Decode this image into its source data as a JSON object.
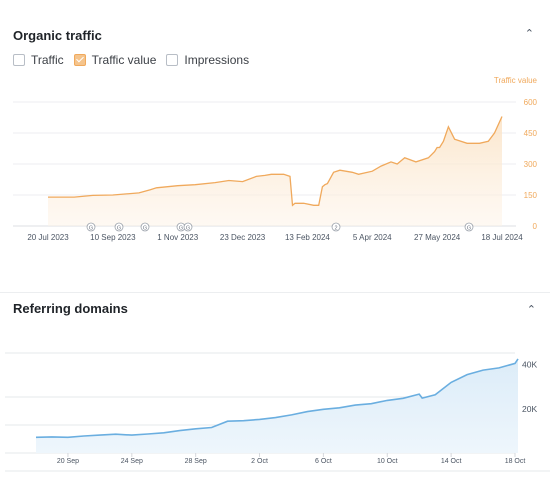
{
  "traffic_panel": {
    "title": "Organic traffic",
    "collapse_icon": "chevron-up-icon",
    "legend": [
      {
        "label": "Traffic",
        "checked": false
      },
      {
        "label": "Traffic value",
        "checked": true
      },
      {
        "label": "Impressions",
        "checked": false
      }
    ],
    "accent": "#f0a95c"
  },
  "domains_panel": {
    "title": "Referring domains",
    "collapse_icon": "chevron-up-icon",
    "accent": "#6aaee0"
  },
  "chart_data": [
    {
      "type": "area",
      "ylabel": "Traffic value",
      "ylim": [
        0,
        600
      ],
      "y_ticks": [
        0,
        150,
        300,
        450,
        600
      ],
      "x_tick_labels": [
        "20 Jul 2023",
        "10 Sep 2023",
        "1 Nov 2023",
        "23 Dec 2023",
        "13 Feb 2024",
        "5 Apr 2024",
        "27 May 2024",
        "18 Jul 2024"
      ],
      "annotations": [
        "G",
        "G",
        "G",
        "G",
        "G",
        "2",
        "G"
      ],
      "series": [
        {
          "x": [
            "20 Jul 2023",
            "10 Aug 2023",
            "25 Aug 2023",
            "10 Sep 2023",
            "1 Oct 2023",
            "10 Oct 2023",
            "15 Oct 2023",
            "1 Nov 2023",
            "15 Nov 2023",
            "1 Dec 2023",
            "12 Dec 2023",
            "23 Dec 2023",
            "3 Jan 2024",
            "10 Jan 2024",
            "15 Jan 2024",
            "25 Jan 2024",
            "30 Jan 2024",
            "1 Feb 2024",
            "3 Feb 2024",
            "10 Feb 2024",
            "18 Feb 2024",
            "22 Feb 2024",
            "25 Feb 2024",
            "27 Feb 2024",
            "29 Feb 2024",
            "5 Mar 2024",
            "10 Mar 2024",
            "20 Mar 2024",
            "25 Mar 2024",
            "5 Apr 2024",
            "12 Apr 2024",
            "20 Apr 2024",
            "25 Apr 2024",
            "1 May 2024",
            "10 May 2024",
            "20 May 2024",
            "25 May 2024",
            "27 May 2024",
            "29 May 2024",
            "1 Jun 2024",
            "5 Jun 2024",
            "10 Jun 2024",
            "20 Jun 2024",
            "30 Jun 2024",
            "7 Jul 2024",
            "12 Jul 2024",
            "18 Jul 2024"
          ],
          "values": [
            140,
            140,
            148,
            150,
            160,
            175,
            185,
            195,
            200,
            210,
            220,
            215,
            240,
            245,
            250,
            250,
            240,
            100,
            110,
            110,
            100,
            100,
            190,
            200,
            205,
            260,
            270,
            260,
            250,
            265,
            290,
            310,
            300,
            330,
            310,
            330,
            360,
            380,
            380,
            410,
            480,
            420,
            400,
            400,
            410,
            450,
            530
          ]
        }
      ]
    },
    {
      "type": "area",
      "ylim": [
        0,
        50000
      ],
      "y_tick_labels": [
        "20K",
        "40K"
      ],
      "y_ticks": [
        20000,
        40000
      ],
      "x_tick_labels": [
        "20 Sep",
        "24 Sep",
        "28 Sep",
        "2 Oct",
        "6 Oct",
        "10 Oct",
        "14 Oct",
        "18 Oct"
      ],
      "series": [
        {
          "x": [
            "18 Sep",
            "19 Sep",
            "20 Sep",
            "21 Sep",
            "22 Sep",
            "23 Sep",
            "24 Sep",
            "25 Sep",
            "26 Sep",
            "27 Sep",
            "28 Sep",
            "29 Sep",
            "30 Sep",
            "1 Oct",
            "2 Oct",
            "3 Oct",
            "4 Oct",
            "5 Oct",
            "6 Oct",
            "7 Oct",
            "8 Oct",
            "9 Oct",
            "10 Oct",
            "11 Oct",
            "12 Oct",
            "12 Oct",
            "13 Oct",
            "14 Oct",
            "15 Oct",
            "16 Oct",
            "17 Oct",
            "18 Oct",
            "18 Oct"
          ],
          "values": [
            7000,
            7200,
            7000,
            7600,
            8000,
            8400,
            8000,
            8500,
            9000,
            10000,
            10800,
            11400,
            14200,
            14400,
            15000,
            15800,
            17000,
            18500,
            19500,
            20200,
            21400,
            22000,
            23500,
            24400,
            26300,
            24500,
            26000,
            31500,
            35000,
            37000,
            38000,
            40000,
            42000
          ]
        }
      ]
    }
  ]
}
